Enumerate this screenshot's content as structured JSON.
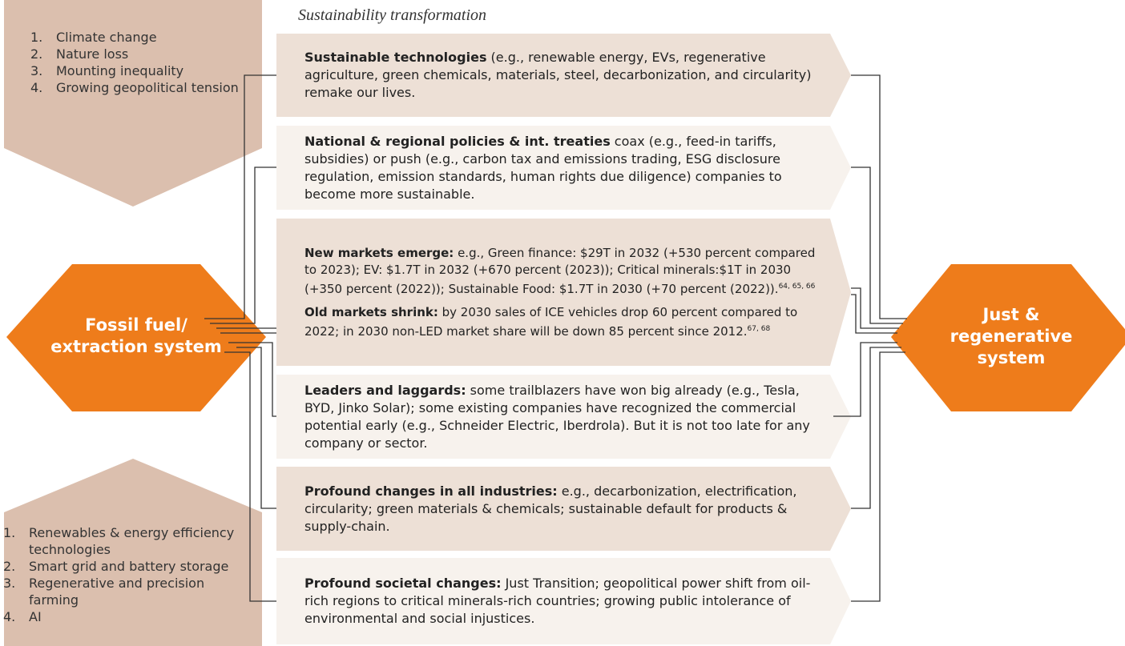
{
  "title": "Sustainability transformation",
  "top_left_box": {
    "items": [
      {
        "number": "1.",
        "text": "Climate change"
      },
      {
        "number": "2.",
        "text": "Nature loss"
      },
      {
        "number": "3.",
        "text": "Mounting inequality"
      },
      {
        "number": "4.",
        "text": "Growing geopolitical tension"
      }
    ]
  },
  "bottom_left_box": {
    "items": [
      {
        "number": "1.",
        "text": "Renewables & energy efficiency technologies"
      },
      {
        "number": "2.",
        "text": "Smart grid and battery storage"
      },
      {
        "number": "3.",
        "text": "Regenerative and precision farming"
      },
      {
        "number": "4.",
        "text": "AI"
      }
    ]
  },
  "left_node": {
    "label": "Fossil fuel/ extraction system"
  },
  "right_node": {
    "label": "Just & regenerative system"
  },
  "rows": [
    {
      "paragraphs": [
        {
          "bold": "Sustainable technologies",
          "text": " (e.g., renewable energy, EVs, regenerative agriculture, green chemicals, materials, steel, decarbonization, and circularity) remake our lives."
        }
      ]
    },
    {
      "paragraphs": [
        {
          "bold": "National & regional policies & int. treaties",
          "text": " coax (e.g., feed-in tariffs, subsidies) or push (e.g., carbon tax and emissions trading, ESG disclosure regulation, emission standards, human rights due diligence) companies to become more sustainable."
        }
      ]
    },
    {
      "paragraphs": [
        {
          "bold": "New markets emerge:",
          "text": " e.g., Green finance: $29T in 2032 (+530 percent compared to 2023); EV: $1.7T in 2032 (+670 percent (2023)); Critical minerals:$1T in 2030 (+350 percent (2022)); Sustainable Food: $1.7T in 2030 (+70 percent (2022)).",
          "sup": "64, 65, 66"
        },
        {
          "bold": "Old markets shrink:",
          "text": " by 2030 sales of ICE vehicles drop 60 percent compared to 2022; in 2030 non-LED market share will be down 85 percent since 2012.",
          "sup": "67, 68"
        }
      ]
    },
    {
      "paragraphs": [
        {
          "bold": "Leaders and laggards:",
          "text": " some trailblazers have won big already (e.g., Tesla, BYD, Jinko Solar); some existing companies have recognized the commercial potential early (e.g., Schneider Electric, Iberdrola). But it is not too late for any company or sector."
        }
      ]
    },
    {
      "paragraphs": [
        {
          "bold": "Profound changes in all industries:",
          "text": " e.g., decarbonization, electrification, circularity; green materials & chemicals; sustainable default for products & supply-chain."
        }
      ]
    },
    {
      "paragraphs": [
        {
          "bold": "Profound societal changes:",
          "text": " Just Transition; geopolitical power shift from oil-rich regions to critical minerals-rich countries; growing public intolerance of environmental and social injustices."
        }
      ]
    }
  ]
}
